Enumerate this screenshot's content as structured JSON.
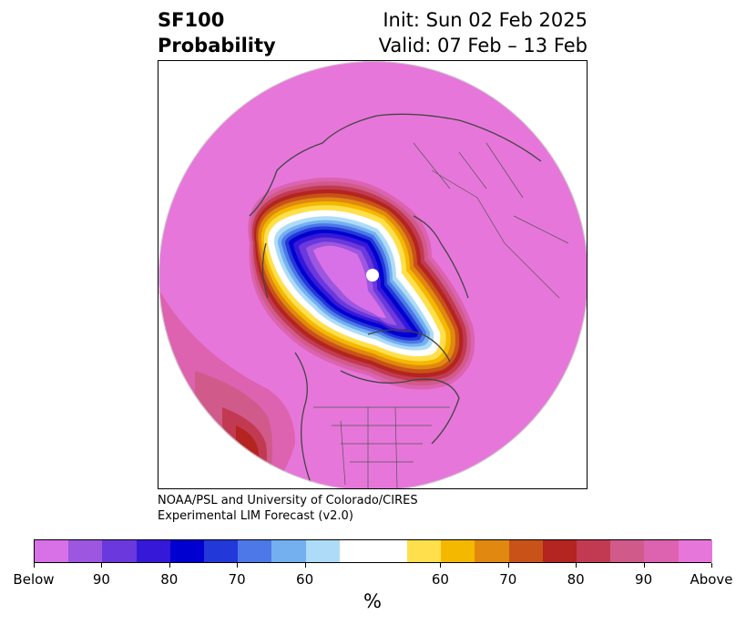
{
  "header": {
    "variable": "SF100",
    "product": "Probability",
    "init": "Init: Sun 02 Feb 2025",
    "valid": "Valid: 07 Feb – 13 Feb"
  },
  "credit": {
    "line1": "NOAA/PSL and University of Colorado/CIRES",
    "line2": "Experimental LIM Forecast (v2.0)"
  },
  "colorbar": {
    "unit": "%",
    "colors": [
      "#d870e8",
      "#9c56e0",
      "#6a38dc",
      "#3618d8",
      "#0000d0",
      "#2238d8",
      "#4c78e8",
      "#74b0f0",
      "#aedcf8",
      "#ffffff",
      "#ffe04c",
      "#f5b800",
      "#e08810",
      "#c85218",
      "#b42420",
      "#c23a52",
      "#d05a8a",
      "#dd62b0",
      "#e776da"
    ],
    "tick_labels": [
      "Below",
      "90",
      "80",
      "70",
      "60",
      "60",
      "70",
      "80",
      "90",
      "Above"
    ]
  },
  "map": {
    "projection": "north-polar-stereographic",
    "dominant_category": "Above"
  }
}
